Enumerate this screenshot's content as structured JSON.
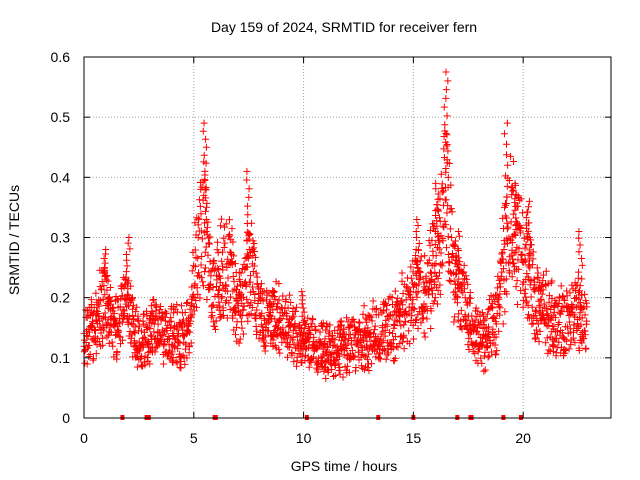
{
  "chart_data": {
    "type": "scatter",
    "title": "Day 159 of 2024, SRMTID for receiver fern",
    "xlabel": "GPS time / hours",
    "ylabel": "SRMTID / TECUs",
    "xlim": [
      0,
      24
    ],
    "ylim": [
      0,
      0.6
    ],
    "xticks": [
      0,
      5,
      10,
      15,
      20
    ],
    "xtick_labels": [
      "0",
      "5",
      "10",
      "15",
      "20"
    ],
    "yticks": [
      0,
      0.1,
      0.2,
      0.3,
      0.4,
      0.5,
      0.6
    ],
    "ytick_labels": [
      "0",
      "0.1",
      "0.2",
      "0.3",
      "0.4",
      "0.5",
      "0.6"
    ],
    "grid": true,
    "marker": "+",
    "series": [
      {
        "name": "SRMTID",
        "color": "#ff0000",
        "profile_hours": [
          0,
          0.5,
          0.9,
          1.3,
          1.6,
          1.9,
          2.2,
          2.6,
          3.2,
          3.8,
          4.3,
          4.8,
          5.2,
          5.5,
          5.8,
          6.2,
          6.6,
          7.0,
          7.6,
          8.1,
          8.7,
          9.3,
          9.9,
          10.5,
          11.0,
          11.5,
          12.0,
          12.6,
          13.2,
          13.8,
          14.3,
          14.8,
          15.2,
          15.6,
          15.9,
          16.2,
          16.5,
          16.9,
          17.3,
          17.7,
          18.0,
          18.4,
          18.8,
          19.1,
          19.4,
          19.7,
          20.1,
          20.5,
          21.0,
          21.5,
          22.0,
          22.5,
          22.9
        ],
        "profile_tecu": [
          0.13,
          0.15,
          0.2,
          0.16,
          0.15,
          0.2,
          0.16,
          0.12,
          0.15,
          0.14,
          0.13,
          0.15,
          0.3,
          0.33,
          0.2,
          0.24,
          0.26,
          0.17,
          0.25,
          0.16,
          0.17,
          0.15,
          0.13,
          0.12,
          0.11,
          0.12,
          0.12,
          0.13,
          0.14,
          0.15,
          0.16,
          0.2,
          0.21,
          0.2,
          0.25,
          0.3,
          0.4,
          0.22,
          0.2,
          0.15,
          0.13,
          0.14,
          0.17,
          0.25,
          0.34,
          0.3,
          0.27,
          0.2,
          0.18,
          0.16,
          0.15,
          0.18,
          0.16
        ],
        "peak_hours": [
          1.0,
          2.0,
          5.5,
          7.5,
          10.0,
          15.2,
          16.1,
          16.5,
          17.0,
          19.2,
          19.6,
          20.2,
          22.6
        ],
        "peak_tecu": [
          0.28,
          0.3,
          0.49,
          0.41,
          0.21,
          0.33,
          0.39,
          0.575,
          0.31,
          0.49,
          0.39,
          0.36,
          0.31
        ]
      }
    ],
    "zero_markers_hours": [
      1.75,
      2.85,
      2.95,
      5.95,
      6.0,
      10.15,
      13.4,
      15.0,
      17.0,
      17.6,
      17.65,
      19.1,
      19.9
    ]
  }
}
